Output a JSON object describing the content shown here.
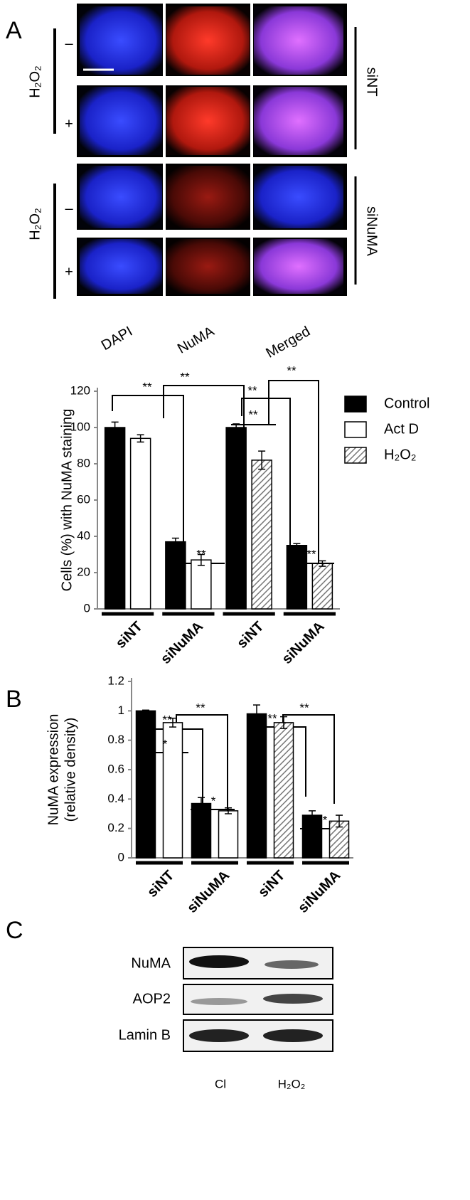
{
  "panels": {
    "a": {
      "label": "A",
      "columns": [
        "DAPI",
        "NuMA",
        "Merged"
      ],
      "blocks": [
        {
          "condition": "H₂O₂",
          "rows": [
            "–",
            "+"
          ],
          "group": "siNT"
        },
        {
          "condition": "H₂O₂",
          "rows": [
            "–",
            "+"
          ],
          "group": "siNuMA"
        }
      ]
    },
    "b": {
      "label": "B"
    },
    "c": {
      "label": "C",
      "rows": [
        "NuMA",
        "AOP2",
        "Lamin B"
      ],
      "columns": [
        "Cl",
        "H₂O₂"
      ]
    }
  },
  "chart_data": [
    {
      "type": "bar",
      "y_label": [
        "Cells (%) with NuMA staining"
      ],
      "categories": [
        "siNT",
        "siNuMA",
        "siNT",
        "siNuMA"
      ],
      "series": [
        {
          "name": "Control",
          "color": "#000000",
          "values": [
            100,
            37,
            100,
            35
          ],
          "errors": [
            3,
            2,
            2,
            1
          ]
        },
        {
          "name": "Act D",
          "color": "#ffffff",
          "values": [
            94,
            27,
            null,
            null
          ],
          "errors": [
            2,
            3,
            null,
            null
          ]
        },
        {
          "name": "H₂O₂",
          "color": "#777777",
          "hatch": true,
          "values": [
            null,
            null,
            82,
            25
          ],
          "errors": [
            null,
            null,
            5,
            1.5
          ]
        }
      ],
      "ylim": [
        0,
        120
      ],
      "yticks": [
        0,
        20,
        40,
        60,
        80,
        100,
        120
      ],
      "legend": "right",
      "annotations": [
        "**",
        "**",
        "**",
        "**",
        "**",
        "**",
        "**"
      ]
    },
    {
      "type": "bar",
      "y_label": [
        "NuMA expression",
        "(relative density)"
      ],
      "categories": [
        "siNT",
        "siNuMA",
        "siNT",
        "siNuMA"
      ],
      "series": [
        {
          "color": "#000000",
          "values": [
            1.0,
            0.37,
            0.98,
            0.29
          ],
          "errors": [
            0.005,
            0.04,
            0.06,
            0.03
          ]
        },
        {
          "color": "#ffffff",
          "values": [
            0.92,
            0.32,
            null,
            null
          ],
          "errors": [
            0.03,
            0.02,
            null,
            null
          ]
        },
        {
          "color": "#777777",
          "hatch": true,
          "values": [
            null,
            null,
            0.92,
            0.25
          ],
          "errors": [
            null,
            null,
            0.04,
            0.04
          ]
        }
      ],
      "ylim": [
        0,
        1.2
      ],
      "yticks": [
        0,
        0.2,
        0.4,
        0.6,
        0.8,
        1,
        1.2
      ],
      "legend": "none",
      "annotations": [
        "*",
        "**",
        "**",
        "*",
        "**",
        "**",
        "*"
      ]
    }
  ]
}
